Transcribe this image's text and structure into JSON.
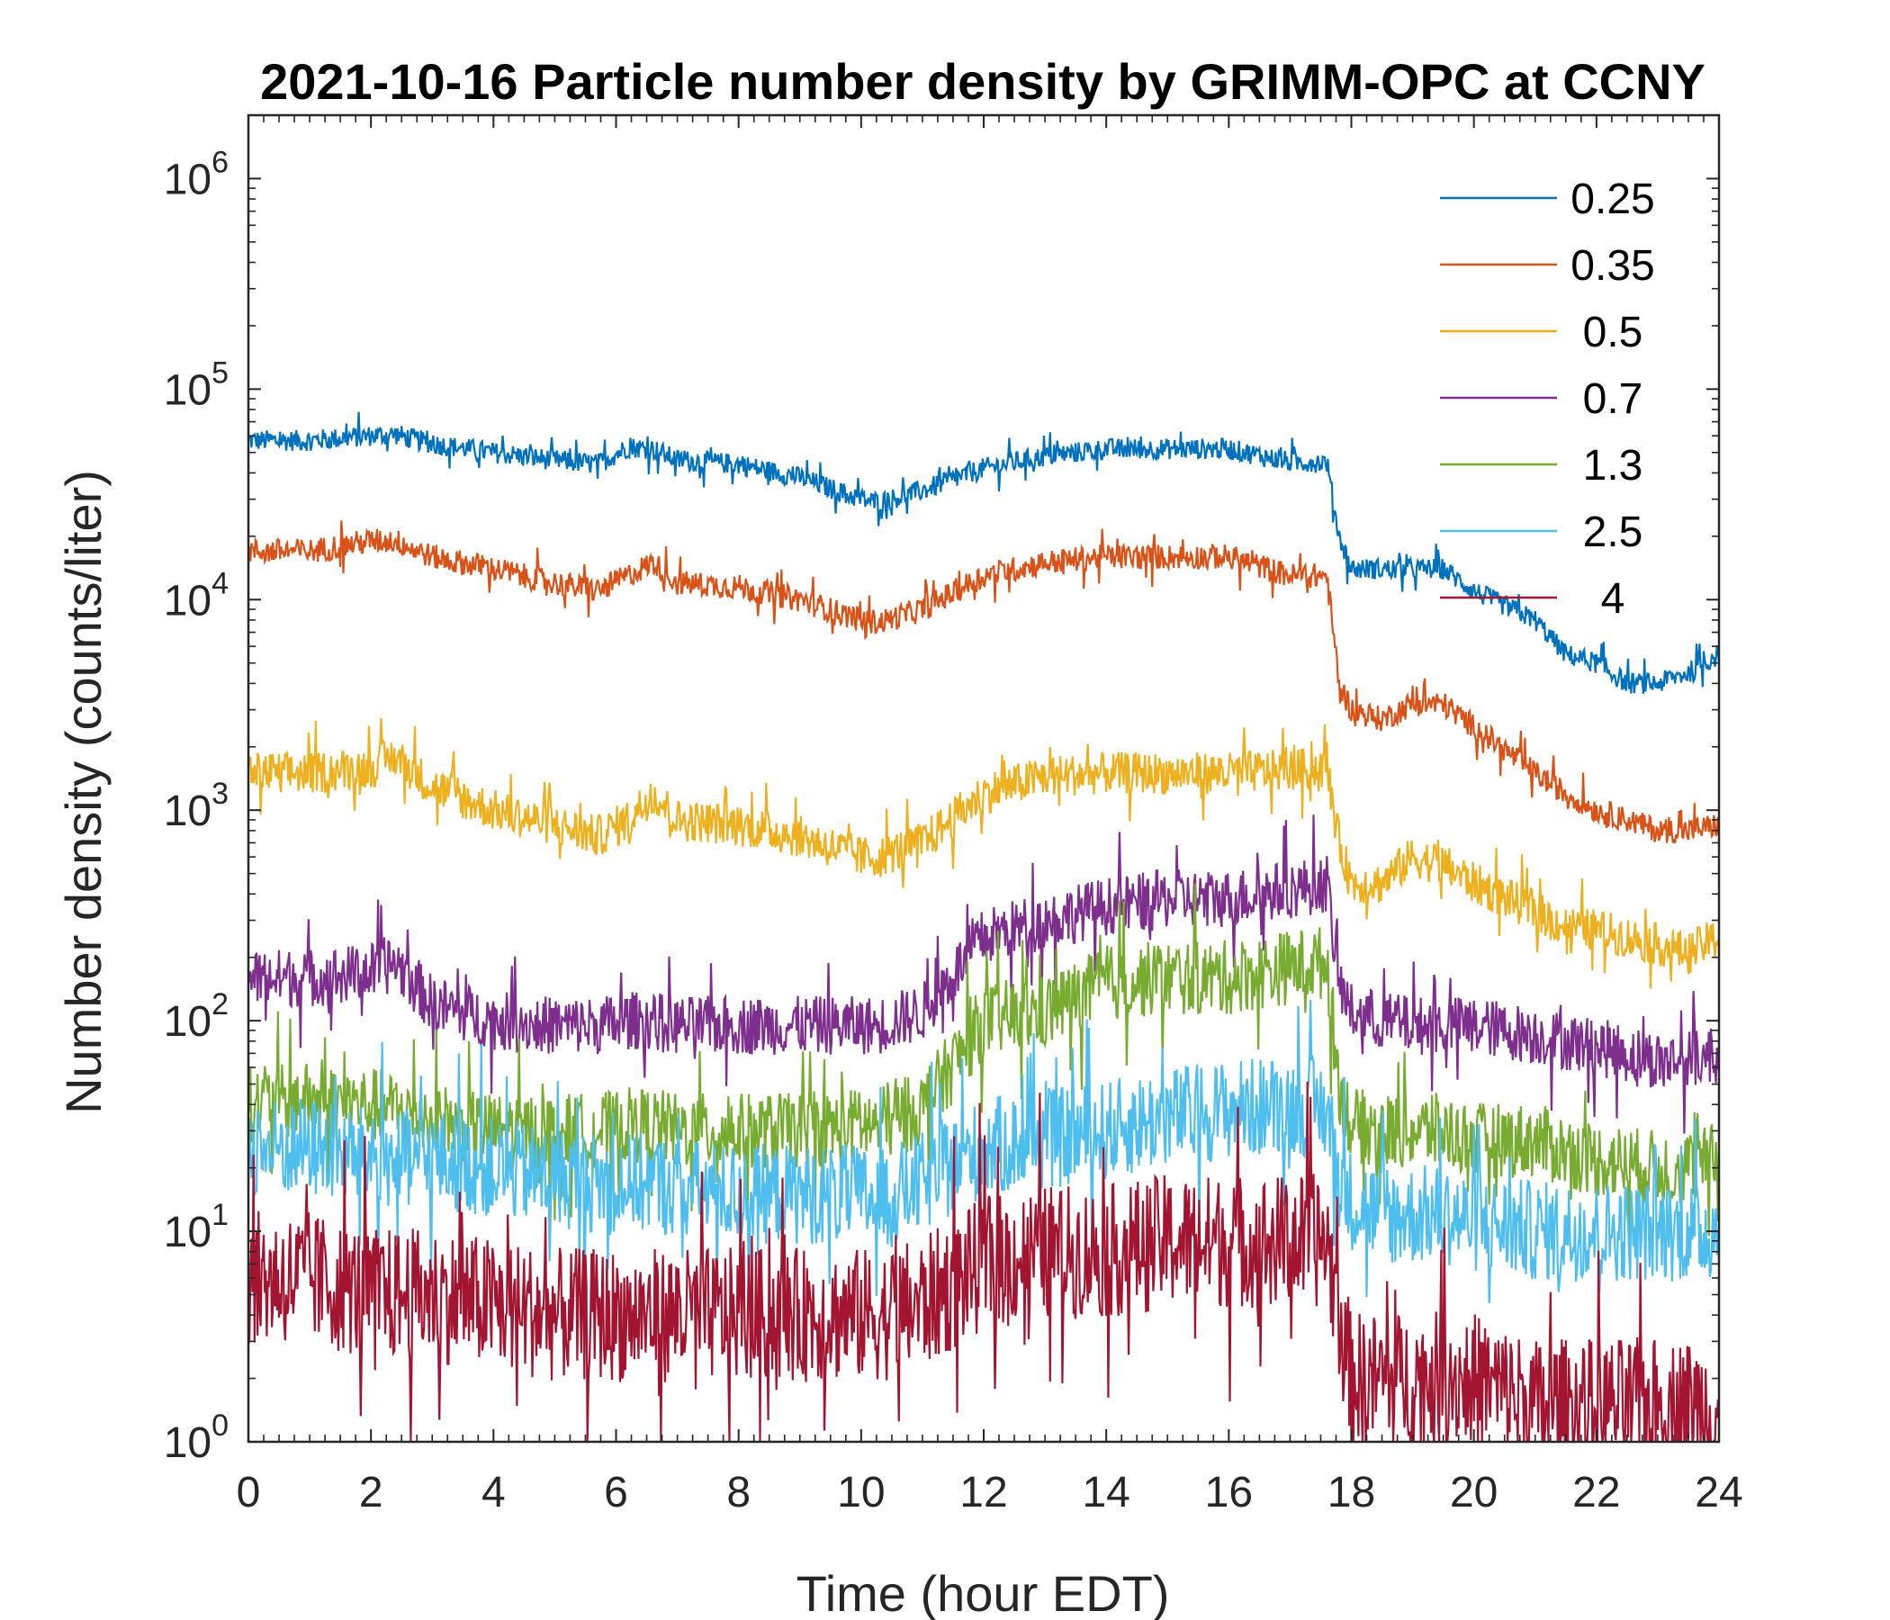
{
  "chart_data": {
    "type": "line",
    "title": "2021-10-16 Particle number density by GRIMM-OPC at CCNY",
    "xlabel": "Time (hour EDT)",
    "ylabel": "Number density (counts/liter)",
    "xlim": [
      0,
      24
    ],
    "ylim": [
      1,
      2000000
    ],
    "yscale": "log",
    "xticks": [
      "0",
      "2",
      "4",
      "6",
      "8",
      "10",
      "12",
      "14",
      "16",
      "18",
      "20",
      "22",
      "24"
    ],
    "yticks": [
      {
        "base": "10",
        "exp": "0"
      },
      {
        "base": "10",
        "exp": "1"
      },
      {
        "base": "10",
        "exp": "2"
      },
      {
        "base": "10",
        "exp": "3"
      },
      {
        "base": "10",
        "exp": "4"
      },
      {
        "base": "10",
        "exp": "5"
      },
      {
        "base": "10",
        "exp": "6"
      }
    ],
    "legend_position": "top-right",
    "x": [
      0,
      1,
      2,
      2.4,
      3,
      4,
      5,
      5.7,
      6.2,
      6.6,
      7,
      8,
      9,
      10,
      10.3,
      11,
      12,
      13,
      14,
      15,
      16,
      17,
      17.6,
      17.8,
      18,
      18.5,
      19,
      19.5,
      20,
      21,
      21.5,
      22,
      22.5,
      23,
      23.5,
      24
    ],
    "series": [
      {
        "name": "0.25",
        "color": "#0072BD",
        "noise": 0.05,
        "values": [
          57000,
          57000,
          60000,
          61000,
          55000,
          50000,
          46000,
          44000,
          53000,
          52000,
          46000,
          44000,
          38000,
          30000,
          29000,
          33000,
          42000,
          48000,
          52000,
          52000,
          52000,
          45000,
          45000,
          20000,
          14000,
          14000,
          14000,
          14000,
          11000,
          8000,
          5500,
          5000,
          4000,
          4000,
          4500,
          5500
        ]
      },
      {
        "name": "0.35",
        "color": "#D95319",
        "noise": 0.06,
        "values": [
          17000,
          17000,
          19000,
          19000,
          16000,
          14000,
          12000,
          11000,
          13000,
          15000,
          12000,
          11500,
          10000,
          8000,
          7800,
          9000,
          13000,
          15000,
          16000,
          16000,
          16000,
          13000,
          13000,
          4000,
          3000,
          2700,
          3200,
          3200,
          2500,
          1500,
          1200,
          1000,
          900,
          800,
          800,
          850
        ]
      },
      {
        "name": "0.5",
        "color": "#EDB120",
        "noise": 0.1,
        "values": [
          1500,
          1500,
          1600,
          1800,
          1300,
          1000,
          850,
          750,
          900,
          1200,
          900,
          850,
          750,
          600,
          600,
          700,
          1200,
          1450,
          1500,
          1500,
          1500,
          1550,
          1600,
          700,
          450,
          450,
          600,
          550,
          450,
          330,
          280,
          270,
          250,
          230,
          210,
          250
        ]
      },
      {
        "name": "0.7",
        "color": "#7E2F8E",
        "noise": 0.14,
        "values": [
          160,
          160,
          170,
          190,
          120,
          100,
          95,
          95,
          100,
          100,
          95,
          95,
          95,
          95,
          95,
          110,
          250,
          300,
          350,
          380,
          380,
          420,
          450,
          150,
          110,
          100,
          95,
          95,
          95,
          85,
          80,
          75,
          70,
          65,
          65,
          70
        ]
      },
      {
        "name": "1.3",
        "color": "#77AC30",
        "noise": 0.18,
        "values": [
          40,
          42,
          40,
          38,
          34,
          30,
          30,
          30,
          32,
          32,
          30,
          30,
          30,
          32,
          32,
          38,
          100,
          110,
          150,
          160,
          160,
          180,
          190,
          50,
          32,
          30,
          30,
          30,
          27,
          27,
          24,
          22,
          21,
          20,
          20,
          22
        ]
      },
      {
        "name": "2.5",
        "color": "#4DBEEE",
        "noise": 0.24,
        "values": [
          25,
          25,
          22,
          22,
          22,
          20,
          18,
          17,
          17,
          17,
          16,
          15,
          15,
          15,
          14,
          17,
          25,
          27,
          30,
          35,
          38,
          40,
          38,
          18,
          14,
          12,
          12,
          12,
          11,
          10,
          10,
          10,
          10,
          10,
          10,
          10
        ]
      },
      {
        "name": "4",
        "color": "#A2142F",
        "noise": 0.32,
        "values": [
          6,
          6,
          5,
          5,
          5,
          4.5,
          4,
          4,
          4,
          4,
          4,
          4,
          4,
          4,
          4,
          4.5,
          7,
          8,
          8,
          9,
          9,
          9,
          9,
          4,
          2,
          2,
          2,
          2,
          2,
          1.5,
          1.5,
          1.5,
          1.5,
          1.5,
          1.5,
          1.5
        ]
      }
    ]
  }
}
